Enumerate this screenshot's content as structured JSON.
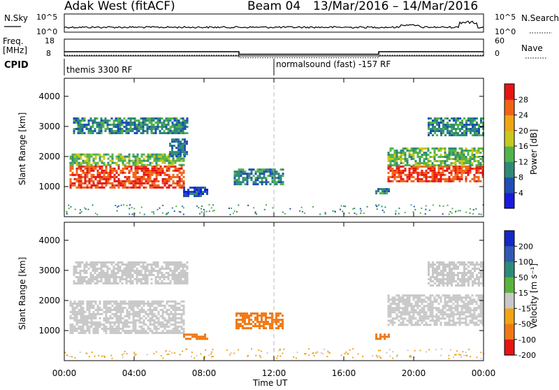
{
  "header": {
    "title": "Adak West (fitACF)",
    "beam": "Beam 04",
    "date_range": "13/Mar/2016 – 14/Mar/2016"
  },
  "noise_panel": {
    "left_label": "N.Sky",
    "right_label": "N.Search",
    "tick_high": "10^5",
    "tick_low": "10^0"
  },
  "freq_panel": {
    "left_label_line1": "Freq.",
    "left_label_line2": "[MHz]",
    "left_ticks": [
      "18",
      "8"
    ],
    "right_ticks": [
      "60",
      "0"
    ],
    "right_label": "Nave"
  },
  "cpid_panel": {
    "label": "CPID",
    "program_1": "themis 3300 RF",
    "program_2": "normalsound (fast) -157 RF"
  },
  "chart_data": [
    {
      "type": "heatmap",
      "name": "power",
      "ylabel": "Slant Range [km]",
      "ylim": [
        0,
        4600
      ],
      "yticks": [
        "1000",
        "2000",
        "3000",
        "4000"
      ],
      "xlim_hours": [
        0,
        24
      ],
      "colorbar": {
        "label": "Power [dB]",
        "ticks": [
          "4",
          "8",
          "12",
          "16",
          "20",
          "24",
          "28"
        ],
        "range": [
          0,
          32
        ],
        "colors": [
          "#1a1adc",
          "#1f4fb4",
          "#2e8a78",
          "#53b34b",
          "#c8c81e",
          "#f0a514",
          "#f06414",
          "#e61414"
        ]
      },
      "regions": [
        {
          "t0": 0.3,
          "t1": 6.8,
          "r0": 1000,
          "r1": 1700,
          "value": 28
        },
        {
          "t0": 0.3,
          "t1": 6.8,
          "r0": 1700,
          "r1": 2100,
          "value": 14
        },
        {
          "t0": 0.5,
          "t1": 7.0,
          "r0": 2800,
          "r1": 3300,
          "value": 10
        },
        {
          "t0": 6.0,
          "t1": 7.0,
          "r0": 2000,
          "r1": 2600,
          "value": 8
        },
        {
          "t0": 6.8,
          "t1": 8.2,
          "r0": 700,
          "r1": 1000,
          "value": 6
        },
        {
          "t0": 9.7,
          "t1": 12.5,
          "r0": 1100,
          "r1": 1600,
          "value": 10
        },
        {
          "t0": 17.8,
          "t1": 18.6,
          "r0": 800,
          "r1": 950,
          "value": 10
        },
        {
          "t0": 18.5,
          "t1": 24.0,
          "r0": 1200,
          "r1": 1700,
          "value": 28
        },
        {
          "t0": 18.5,
          "t1": 24.0,
          "r0": 1700,
          "r1": 2300,
          "value": 14
        },
        {
          "t0": 20.8,
          "t1": 24.0,
          "r0": 2700,
          "r1": 3300,
          "value": 10
        }
      ]
    },
    {
      "type": "heatmap",
      "name": "velocity",
      "ylabel": "Slant Range [km]",
      "ylim": [
        0,
        4600
      ],
      "yticks": [
        "1000",
        "2000",
        "3000",
        "4000"
      ],
      "xticks": [
        "00:00",
        "04:00",
        "08:00",
        "12:00",
        "16:00",
        "20:00",
        "00:00"
      ],
      "xlabel": "Time UT",
      "colorbar": {
        "label": "Velocity [m s⁻¹]",
        "ticks": [
          "200",
          "100",
          "50",
          "15",
          "-15",
          "-50",
          "-100",
          "-200"
        ],
        "colors": [
          "#1428c8",
          "#2e5ab4",
          "#2e8a78",
          "#5ab43c",
          "#c8c8c8",
          "#f0a514",
          "#f07814",
          "#e61414"
        ]
      },
      "regions": [
        {
          "t0": 0.3,
          "t1": 6.8,
          "r0": 900,
          "r1": 2000,
          "value": 0
        },
        {
          "t0": 0.5,
          "t1": 7.0,
          "r0": 2600,
          "r1": 3300,
          "value": 0
        },
        {
          "t0": 6.8,
          "t1": 8.2,
          "r0": 700,
          "r1": 900,
          "value": -60
        },
        {
          "t0": 9.8,
          "t1": 12.5,
          "r0": 1100,
          "r1": 1600,
          "value": -80
        },
        {
          "t0": 17.8,
          "t1": 18.6,
          "r0": 750,
          "r1": 900,
          "value": -60
        },
        {
          "t0": 18.5,
          "t1": 24.0,
          "r0": 1200,
          "r1": 2200,
          "value": 0
        },
        {
          "t0": 20.8,
          "t1": 24.0,
          "r0": 2500,
          "r1": 3300,
          "value": 0
        }
      ]
    }
  ],
  "freq_series": {
    "hours": [
      0,
      10,
      10,
      18,
      18,
      24
    ],
    "values": [
      10.5,
      10.5,
      9.0,
      9.0,
      10.5,
      10.5
    ]
  }
}
